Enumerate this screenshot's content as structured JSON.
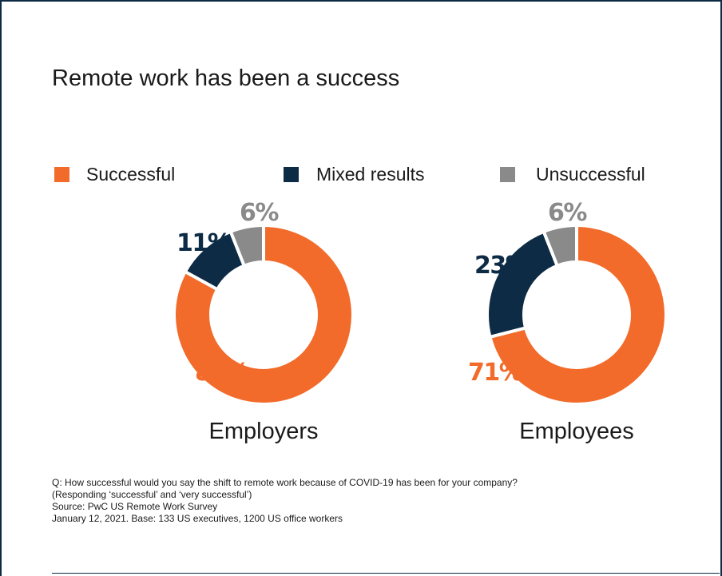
{
  "title": "Remote work has been a success",
  "legend": [
    {
      "label": "Successful",
      "color": "#f26b2a"
    },
    {
      "label": "Mixed results",
      "color": "#0d2b45"
    },
    {
      "label": "Unsuccessful",
      "color": "#8a8a8a"
    }
  ],
  "chart_data": {
    "type": "pie",
    "title": "Remote work has been a success",
    "series_names": [
      "Successful",
      "Mixed results",
      "Unsuccessful"
    ],
    "colors": [
      "#f26b2a",
      "#0d2b45",
      "#8a8a8a"
    ],
    "charts": [
      {
        "label": "Employers",
        "values": [
          83,
          11,
          6
        ],
        "value_labels": [
          "83%",
          "11%",
          "6%"
        ]
      },
      {
        "label": "Employees",
        "values": [
          71,
          23,
          6
        ],
        "value_labels": [
          "71%",
          "23%",
          "6%"
        ]
      }
    ],
    "legend_position": "top"
  },
  "notes": [
    "Q: How successful would you say the shift to remote work because of COVID-19 has been for your company?",
    "(Responding ‘successful’ and ‘very successful’)",
    "Source: PwC US Remote Work Survey",
    "January 12, 2021. Base: 133 US executives, 1200 US office workers"
  ]
}
